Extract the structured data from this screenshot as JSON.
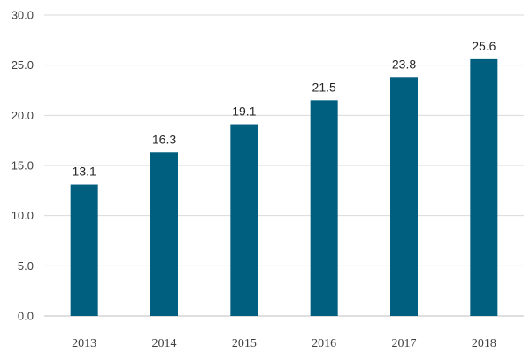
{
  "chart_data": {
    "type": "bar",
    "title": "",
    "xlabel": "",
    "ylabel": "",
    "categories": [
      "2013",
      "2014",
      "2015",
      "2016",
      "2017",
      "2018"
    ],
    "values": [
      13.1,
      16.3,
      19.1,
      21.5,
      23.8,
      25.6
    ],
    "data_labels": [
      "13.1",
      "16.3",
      "19.1",
      "21.5",
      "23.8",
      "25.6"
    ],
    "ylim": [
      0,
      30
    ],
    "y_ticks": [
      "0.0",
      "5.0",
      "10.0",
      "15.0",
      "20.0",
      "25.0",
      "30.0"
    ],
    "y_tick_values": [
      0,
      5,
      10,
      15,
      20,
      25,
      30
    ],
    "grid": true,
    "legend": "none",
    "bar_color": "#005f7f",
    "grid_color": "#d9d9d9"
  }
}
